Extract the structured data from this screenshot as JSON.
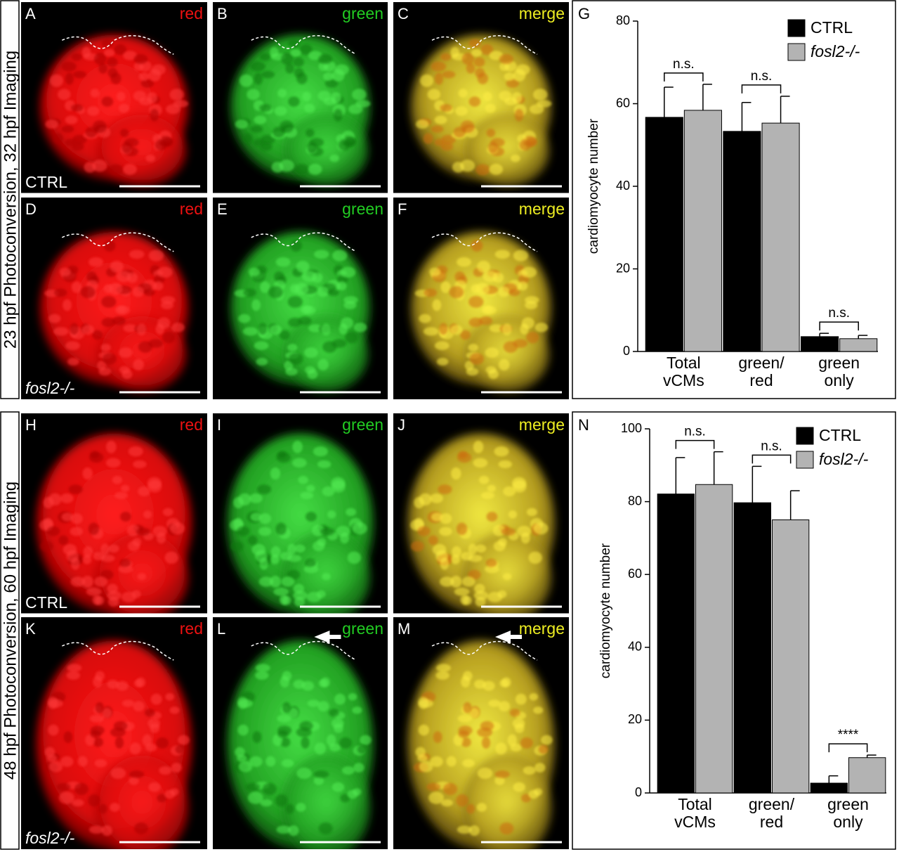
{
  "row_labels": [
    "23 hpf Photoconversion, 32 hpf Imaging",
    "48 hpf Photoconversion, 60 hpf Imaging"
  ],
  "panels": [
    {
      "letter": "A",
      "channel": "red",
      "genotype": "CTRL"
    },
    {
      "letter": "B",
      "channel": "green"
    },
    {
      "letter": "C",
      "channel": "merge"
    },
    {
      "letter": "D",
      "channel": "red",
      "genotype": "fosl2-/-"
    },
    {
      "letter": "E",
      "channel": "green"
    },
    {
      "letter": "F",
      "channel": "merge"
    },
    {
      "letter": "H",
      "channel": "red",
      "genotype": "CTRL"
    },
    {
      "letter": "I",
      "channel": "green"
    },
    {
      "letter": "J",
      "channel": "merge"
    },
    {
      "letter": "K",
      "channel": "red",
      "genotype": "fosl2-/-"
    },
    {
      "letter": "L",
      "channel": "green"
    },
    {
      "letter": "M",
      "channel": "merge"
    }
  ],
  "chart_data": [
    {
      "type": "bar",
      "panel_letter": "G",
      "y_label": "cardiomyocyte number",
      "categories": [
        "Total vCMs",
        "green/ red",
        "green only"
      ],
      "series": [
        {
          "name": "CTRL",
          "color": "#000000",
          "values": [
            56.7,
            53.3,
            3.6
          ],
          "errors": [
            7.3,
            7,
            0.8
          ]
        },
        {
          "name": "fosl2-/-",
          "color": "#b3b3b3",
          "values": [
            58.4,
            55.3,
            3.1
          ],
          "errors": [
            6.3,
            6.5,
            0.8
          ]
        }
      ],
      "annotations": [
        "n.s.",
        "n.s.",
        "n.s."
      ],
      "ylim": [
        0,
        80
      ],
      "yticks": [
        0,
        20,
        40,
        60,
        80
      ],
      "legend": "upper right",
      "grid": false
    },
    {
      "type": "bar",
      "panel_letter": "N",
      "y_label": "cardiomyocyte number",
      "categories": [
        "Total vCMs",
        "green/ red",
        "green only"
      ],
      "series": [
        {
          "name": "CTRL",
          "color": "#000000",
          "values": [
            82.1,
            79.7,
            2.7
          ],
          "errors": [
            10,
            10,
            2
          ]
        },
        {
          "name": "fosl2-/-",
          "color": "#b3b3b3",
          "values": [
            84.7,
            75,
            9.7
          ],
          "errors": [
            9,
            8,
            0.7
          ]
        }
      ],
      "annotations": [
        "n.s.",
        "n.s.",
        "****"
      ],
      "ylim": [
        0,
        100
      ],
      "yticks": [
        0,
        20,
        40,
        60,
        80,
        100
      ],
      "legend": "upper right",
      "grid": false
    }
  ]
}
